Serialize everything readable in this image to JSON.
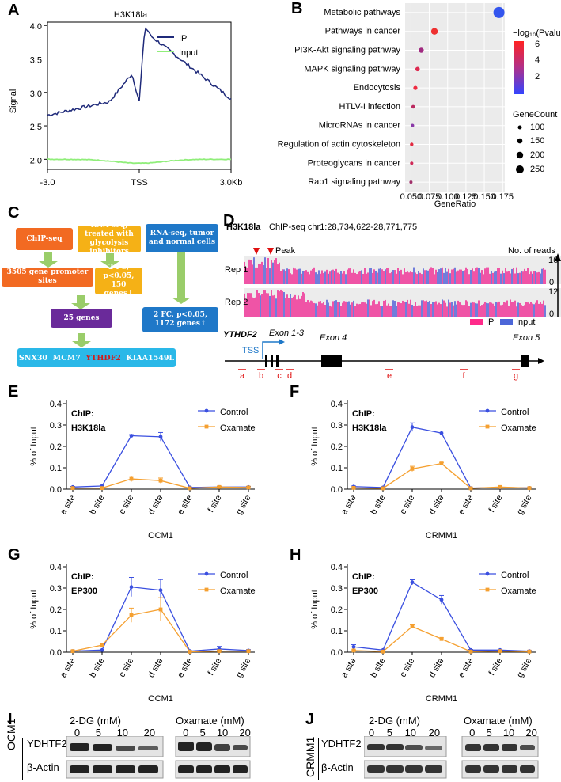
{
  "panels": [
    "A",
    "B",
    "C",
    "D",
    "E",
    "F",
    "G",
    "H",
    "I",
    "J"
  ],
  "panel_a": {
    "title": "H3K18la",
    "ylabel": "Signal",
    "yticks": [
      "4.0",
      "3.5",
      "3.0",
      "2.5",
      "2.0"
    ],
    "xticks": [
      "-3.0",
      "TSS",
      "3.0Kb"
    ],
    "legend": [
      "IP",
      "Input"
    ],
    "colors": {
      "ip": "#1f2a7a",
      "input": "#90ee7a"
    }
  },
  "panel_b": {
    "terms": [
      "Metabolic pathways",
      "Pathways in cancer",
      "PI3K-Akt signaling pathway",
      "MAPK signaling pathway",
      "Endocytosis",
      "HTLV-I infection",
      "MicroRNAs in cancer",
      "Regulation of actin cytoskeleton",
      "Proteoglycans in cancer",
      "Rap1 signaling pathway"
    ],
    "xticks": [
      "0.050",
      "0.075",
      "0.100",
      "0.125",
      "0.150",
      "0.175"
    ],
    "xlabel": "GeneRatio",
    "color_title": "−log₁₀(Pvalue)",
    "color_ticks": [
      "6",
      "4",
      "2"
    ],
    "size_title": "GeneCount",
    "size_ticks": [
      "100",
      "150",
      "200",
      "250"
    ]
  },
  "panel_c": {
    "chip": "ChIP-seq",
    "rnaseq1": "RNA-seq, treated with glycolysis inhibitors",
    "rnaseq2": "RNA-seq, tumor and normal cells",
    "promoter": "3505 gene promoter sites",
    "fc1": "2 FC, p<0.05, 150 genes↓",
    "genes25": "25 genes",
    "fc2": "2 FC, p<0.05, 1172 genes↑",
    "final": [
      "SNX30",
      "MCM7",
      "YTHDF2",
      "KIAA1549L"
    ]
  },
  "panel_d": {
    "mark": "H3K18la",
    "locus": "ChIP-seq   chr1:28,734,622-28,771,775",
    "peak": "Peak",
    "reads": "No. of reads",
    "rep1": "Rep 1",
    "rep2": "Rep 2",
    "scale1": "16",
    "scale2": "12",
    "zero": "0",
    "legend_ip": "IP",
    "legend_input": "Input",
    "gene": "YTHDF2",
    "tss": "TSS",
    "exon13": "Exon 1-3",
    "exon4": "Exon 4",
    "exon5": "Exon 5",
    "sites": [
      "a",
      "b",
      "c",
      "d",
      "e",
      "f",
      "g"
    ]
  },
  "chart_data": [
    {
      "panel": "E",
      "type": "line",
      "title": "ChIP:\nH3K18la",
      "xlabel": "OCM1",
      "ylabel": "% of Input",
      "categories": [
        "a site",
        "b site",
        "c site",
        "d site",
        "e site",
        "f site",
        "g site"
      ],
      "ylim": [
        0,
        0.4
      ],
      "yticks": [
        "0.0",
        "0.1",
        "0.2",
        "0.3",
        "0.4"
      ],
      "series": [
        {
          "name": "Control",
          "color": "#3a4fe0",
          "values": [
            0.01,
            0.015,
            0.25,
            0.245,
            0.008,
            0.01,
            0.01
          ],
          "err": [
            0.003,
            0.003,
            0.005,
            0.02,
            0.002,
            0.003,
            0.003
          ]
        },
        {
          "name": "Oxamate",
          "color": "#f5a030",
          "values": [
            0.005,
            0.005,
            0.048,
            0.04,
            0.004,
            0.01,
            0.008
          ],
          "err": [
            0.002,
            0.002,
            0.013,
            0.012,
            0.002,
            0.004,
            0.003
          ]
        }
      ]
    },
    {
      "panel": "F",
      "type": "line",
      "title": "ChIP:\nH3K18la",
      "xlabel": "CRMM1",
      "ylabel": "% of Input",
      "categories": [
        "a site",
        "b site",
        "c site",
        "d site",
        "e site",
        "f site",
        "g site"
      ],
      "ylim": [
        0,
        0.4
      ],
      "yticks": [
        "0.0",
        "0.1",
        "0.2",
        "0.3",
        "0.4"
      ],
      "series": [
        {
          "name": "Control",
          "color": "#3a4fe0",
          "values": [
            0.012,
            0.008,
            0.29,
            0.262,
            0.005,
            0.008,
            0.006
          ],
          "err": [
            0.003,
            0.003,
            0.02,
            0.01,
            0.002,
            0.003,
            0.002
          ]
        },
        {
          "name": "Oxamate",
          "color": "#f5a030",
          "values": [
            0.006,
            0.004,
            0.095,
            0.12,
            0.004,
            0.01,
            0.005
          ],
          "err": [
            0.002,
            0.002,
            0.012,
            0.005,
            0.002,
            0.006,
            0.002
          ]
        }
      ]
    },
    {
      "panel": "G",
      "type": "line",
      "title": "ChIP:\nEP300",
      "xlabel": "OCM1",
      "ylabel": "% of Input",
      "categories": [
        "a site",
        "b site",
        "c site",
        "d site",
        "e site",
        "f site",
        "g site"
      ],
      "ylim": [
        0,
        0.4
      ],
      "yticks": [
        "0.0",
        "0.1",
        "0.2",
        "0.3",
        "0.4"
      ],
      "series": [
        {
          "name": "Control",
          "color": "#3a4fe0",
          "values": [
            0.005,
            0.01,
            0.305,
            0.29,
            0.005,
            0.015,
            0.008
          ],
          "err": [
            0.003,
            0.003,
            0.045,
            0.05,
            0.002,
            0.012,
            0.004
          ]
        },
        {
          "name": "Oxamate",
          "color": "#f5a030",
          "values": [
            0.005,
            0.033,
            0.173,
            0.2,
            0.002,
            0.005,
            0.005
          ],
          "err": [
            0.002,
            0.006,
            0.033,
            0.055,
            0.001,
            0.004,
            0.002
          ]
        }
      ]
    },
    {
      "panel": "H",
      "type": "line",
      "title": "ChIP:\nEP300",
      "xlabel": "CRMM1",
      "ylabel": "% of Input",
      "categories": [
        "a site",
        "b site",
        "c site",
        "d site",
        "e site",
        "f site",
        "g site"
      ],
      "ylim": [
        0,
        0.4
      ],
      "yticks": [
        "0.0",
        "0.1",
        "0.2",
        "0.3",
        "0.4"
      ],
      "series": [
        {
          "name": "Control",
          "color": "#3a4fe0",
          "values": [
            0.025,
            0.01,
            0.327,
            0.245,
            0.01,
            0.01,
            0.005
          ],
          "err": [
            0.01,
            0.003,
            0.012,
            0.02,
            0.003,
            0.003,
            0.003
          ]
        },
        {
          "name": "Oxamate",
          "color": "#f5a030",
          "values": [
            0.008,
            0.003,
            0.12,
            0.062,
            0.003,
            0.005,
            0.003
          ],
          "err": [
            0.003,
            0.002,
            0.008,
            0.005,
            0.002,
            0.002,
            0.002
          ]
        }
      ]
    }
  ],
  "panel_i": {
    "cell": "OCM1",
    "treat1": "2-DG (mM)",
    "treat2": "Oxamate (mM)",
    "doses": [
      "0",
      "5",
      "10",
      "20"
    ],
    "rows": [
      "YDHTF2",
      "β-Actin"
    ]
  },
  "panel_j": {
    "cell": "CRMM1",
    "treat1": "2-DG (mM)",
    "treat2": "Oxamate (mM)",
    "doses": [
      "0",
      "5",
      "10",
      "20"
    ],
    "rows": [
      "YDHTF2",
      "β-Actin"
    ]
  }
}
